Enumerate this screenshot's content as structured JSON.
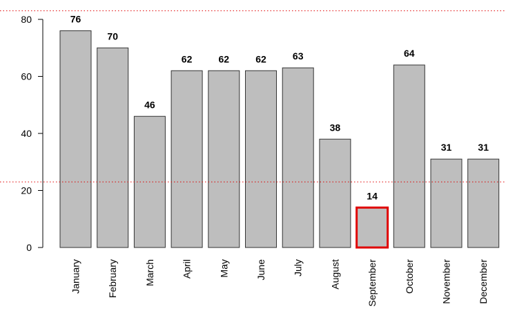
{
  "chart_data": {
    "type": "bar",
    "categories": [
      "January",
      "February",
      "March",
      "April",
      "May",
      "June",
      "July",
      "August",
      "September",
      "October",
      "November",
      "December"
    ],
    "values": [
      76,
      70,
      46,
      62,
      62,
      62,
      63,
      38,
      14,
      64,
      31,
      31
    ],
    "color": "#bebebe",
    "border_color": "#333333",
    "highlight": "September",
    "highlight_color": "#e00000",
    "ylim": [
      0,
      80
    ],
    "yticks": [
      0,
      20,
      40,
      60,
      80
    ],
    "hlines": [
      83,
      23
    ],
    "hline_color": "#e00000"
  }
}
